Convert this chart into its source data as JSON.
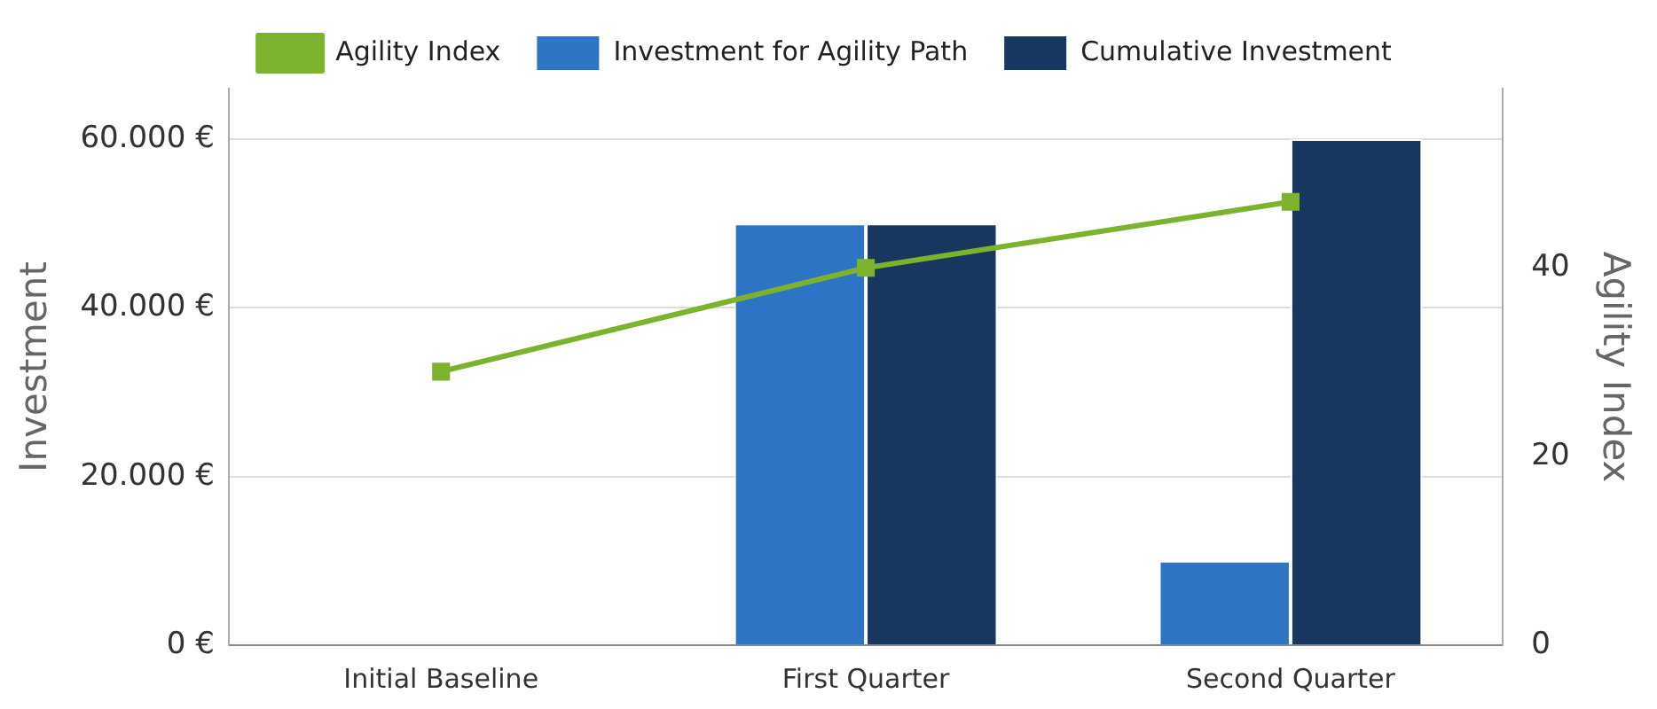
{
  "chart_data": {
    "type": "bar",
    "ylabel": "Investment",
    "y2label": "Agility Index",
    "categories": [
      "Initial Baseline",
      "First Quarter",
      "Second Quarter"
    ],
    "series": [
      {
        "name": "Investment for Agility Path",
        "color": "#2e74c4",
        "values": [
          0,
          50000,
          10000
        ]
      },
      {
        "name": "Cumulative Investment",
        "color": "#17375e",
        "values": [
          0,
          50000,
          60000
        ]
      },
      {
        "name": "Agility Index",
        "type": "line",
        "axis": "y2",
        "color": "#7cb22e",
        "values": [
          29,
          40,
          47
        ],
        "marker": "square"
      }
    ],
    "ylim": [
      0,
      66000
    ],
    "yticks": [
      {
        "value": 0,
        "label": "0 €"
      },
      {
        "value": 20000,
        "label": "20.000 €"
      },
      {
        "value": 40000,
        "label": "40.000 €"
      },
      {
        "value": 60000,
        "label": "60.000 €"
      }
    ],
    "y2lim": [
      0,
      59
    ],
    "y2ticks": [
      0,
      20,
      40
    ],
    "grid": "y",
    "legend": "top"
  }
}
